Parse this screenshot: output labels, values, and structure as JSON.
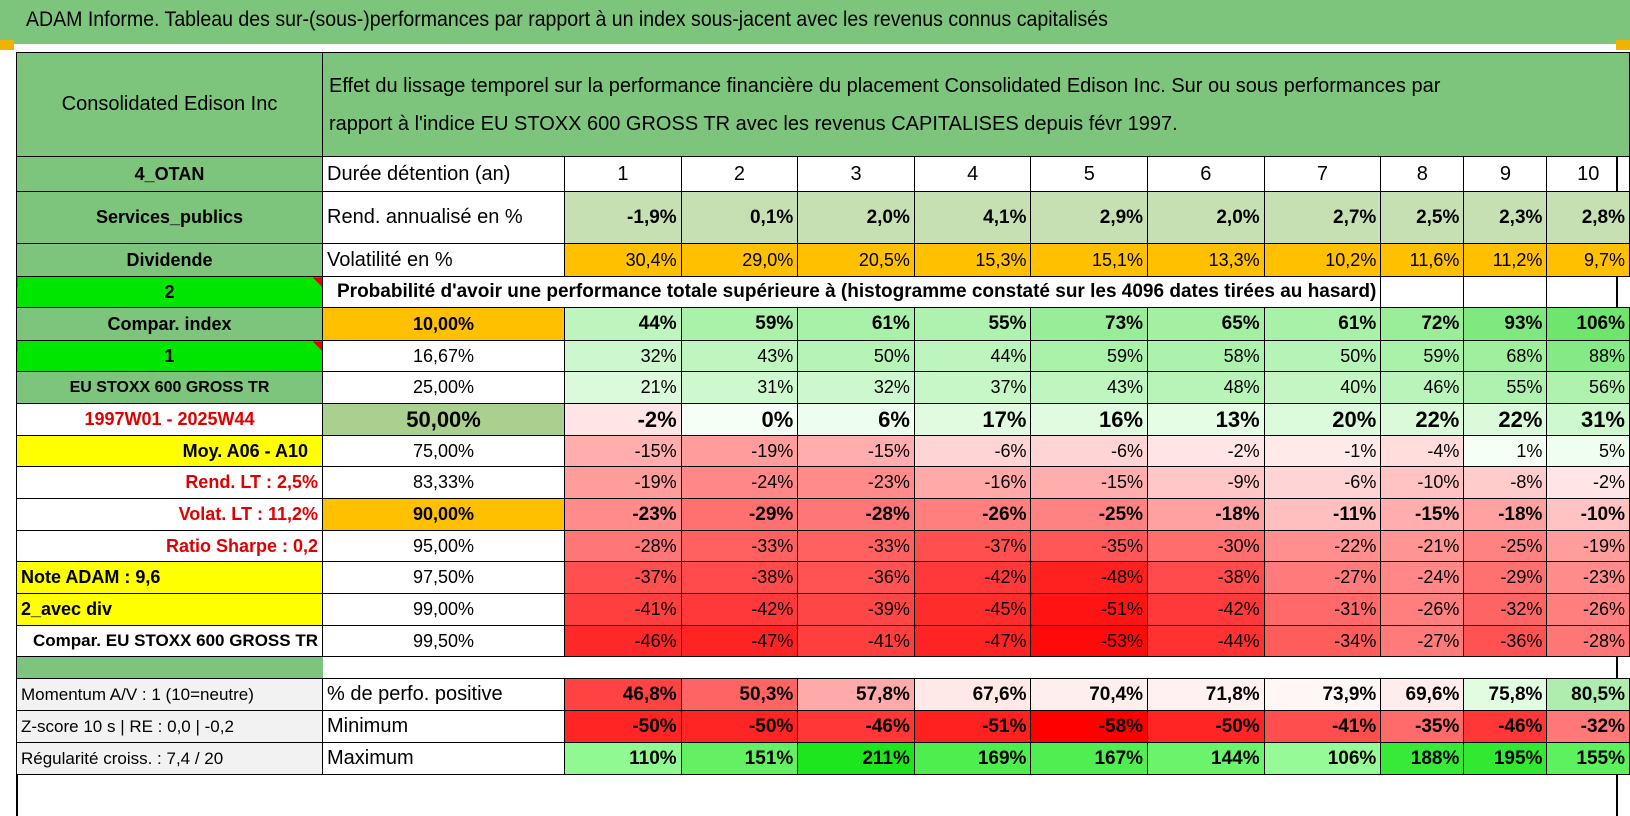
{
  "title": "ADAM Informe. Tableau des sur-(sous-)performances par rapport à un index sous-jacent avec les revenus connus capitalisés",
  "header": {
    "company": "Consolidated Edison Inc",
    "description_line1": "Effet du lissage temporel sur la performance financière du placement Consolidated Edison Inc. Sur ou sous performances par",
    "description_line2": "rapport à l'indice EU STOXX 600 GROSS TR avec les revenus CAPITALISES depuis févr 1997."
  },
  "left_labels": {
    "otan": "4_OTAN",
    "sector": "Services_publics",
    "dividend": "Dividende",
    "two": "2",
    "compar_index": "Compar. index",
    "one": "1",
    "index_name": "EU STOXX 600 GROSS TR",
    "period": "1997W01 - 2025W44",
    "moy": "Moy. A06 - A10",
    "rend_lt": "Rend. LT :    2,5%",
    "volat_lt": "Volat. LT :    11,2%",
    "sharpe": "Ratio Sharpe :     0,2",
    "note": "Note ADAM : 9,6",
    "avec_div": "2_avec div",
    "compar_eu": "Compar. EU STOXX 600 GROSS TR",
    "momentum": "Momentum A/V : 1 (10=neutre)",
    "zscore": "Z-score 10 s | RE : 0,0 | -0,2",
    "regularite": "Régularité croiss. : 7,4 / 20"
  },
  "row_labels": {
    "duree": "Durée détention (an)",
    "rend": "Rend. annualisé en %",
    "volat": "Volatilité en %",
    "proba": "Probabilité d'avoir une performance totale supérieure à (histogramme constaté sur les 4096 dates tirées au hasard)",
    "perfo_pos": "% de perfo. positive",
    "minimum": "Minimum",
    "maximum": "Maximum"
  },
  "years": [
    "1",
    "2",
    "3",
    "4",
    "5",
    "6",
    "7",
    "8",
    "9",
    "10"
  ],
  "rend": [
    "-1,9%",
    "0,1%",
    "2,0%",
    "4,1%",
    "2,9%",
    "2,0%",
    "2,7%",
    "2,5%",
    "2,3%",
    "2,8%"
  ],
  "volat": [
    "30,4%",
    "29,0%",
    "20,5%",
    "15,3%",
    "15,1%",
    "13,3%",
    "10,2%",
    "11,6%",
    "11,2%",
    "9,7%"
  ],
  "quantiles": [
    "10,00%",
    "16,67%",
    "25,00%",
    "50,00%",
    "75,00%",
    "83,33%",
    "90,00%",
    "95,00%",
    "97,50%",
    "99,00%",
    "99,50%"
  ],
  "prob_rows": [
    [
      "44%",
      "59%",
      "61%",
      "55%",
      "73%",
      "65%",
      "61%",
      "72%",
      "93%",
      "106%"
    ],
    [
      "32%",
      "43%",
      "50%",
      "44%",
      "59%",
      "58%",
      "50%",
      "59%",
      "68%",
      "88%"
    ],
    [
      "21%",
      "31%",
      "32%",
      "37%",
      "43%",
      "48%",
      "40%",
      "46%",
      "55%",
      "56%"
    ],
    [
      "-2%",
      "0%",
      "6%",
      "17%",
      "16%",
      "13%",
      "20%",
      "22%",
      "22%",
      "31%"
    ],
    [
      "-15%",
      "-19%",
      "-15%",
      "-6%",
      "-6%",
      "-2%",
      "-1%",
      "-4%",
      "1%",
      "5%"
    ],
    [
      "-19%",
      "-24%",
      "-23%",
      "-16%",
      "-15%",
      "-9%",
      "-6%",
      "-10%",
      "-8%",
      "-2%"
    ],
    [
      "-23%",
      "-29%",
      "-28%",
      "-26%",
      "-25%",
      "-18%",
      "-11%",
      "-15%",
      "-18%",
      "-10%"
    ],
    [
      "-28%",
      "-33%",
      "-33%",
      "-37%",
      "-35%",
      "-30%",
      "-22%",
      "-21%",
      "-25%",
      "-19%"
    ],
    [
      "-37%",
      "-38%",
      "-36%",
      "-42%",
      "-48%",
      "-38%",
      "-27%",
      "-24%",
      "-29%",
      "-23%"
    ],
    [
      "-41%",
      "-42%",
      "-39%",
      "-45%",
      "-51%",
      "-42%",
      "-31%",
      "-26%",
      "-32%",
      "-26%"
    ],
    [
      "-46%",
      "-47%",
      "-41%",
      "-47%",
      "-53%",
      "-44%",
      "-34%",
      "-27%",
      "-36%",
      "-28%"
    ]
  ],
  "perfo_pos": [
    "46,8%",
    "50,3%",
    "57,8%",
    "67,6%",
    "70,4%",
    "71,8%",
    "73,9%",
    "69,6%",
    "75,8%",
    "80,5%"
  ],
  "minimum": [
    "-50%",
    "-50%",
    "-46%",
    "-51%",
    "-58%",
    "-50%",
    "-41%",
    "-35%",
    "-46%",
    "-32%"
  ],
  "maximum": [
    "110%",
    "151%",
    "211%",
    "169%",
    "167%",
    "144%",
    "106%",
    "188%",
    "195%",
    "155%"
  ],
  "colors": {
    "header_green": "#7dc47d",
    "bright_green": "#00e600",
    "yellow": "#ffff00",
    "orange": "#ffc000",
    "rend_green": "#c6e0b4",
    "label_red": "#e00000"
  }
}
